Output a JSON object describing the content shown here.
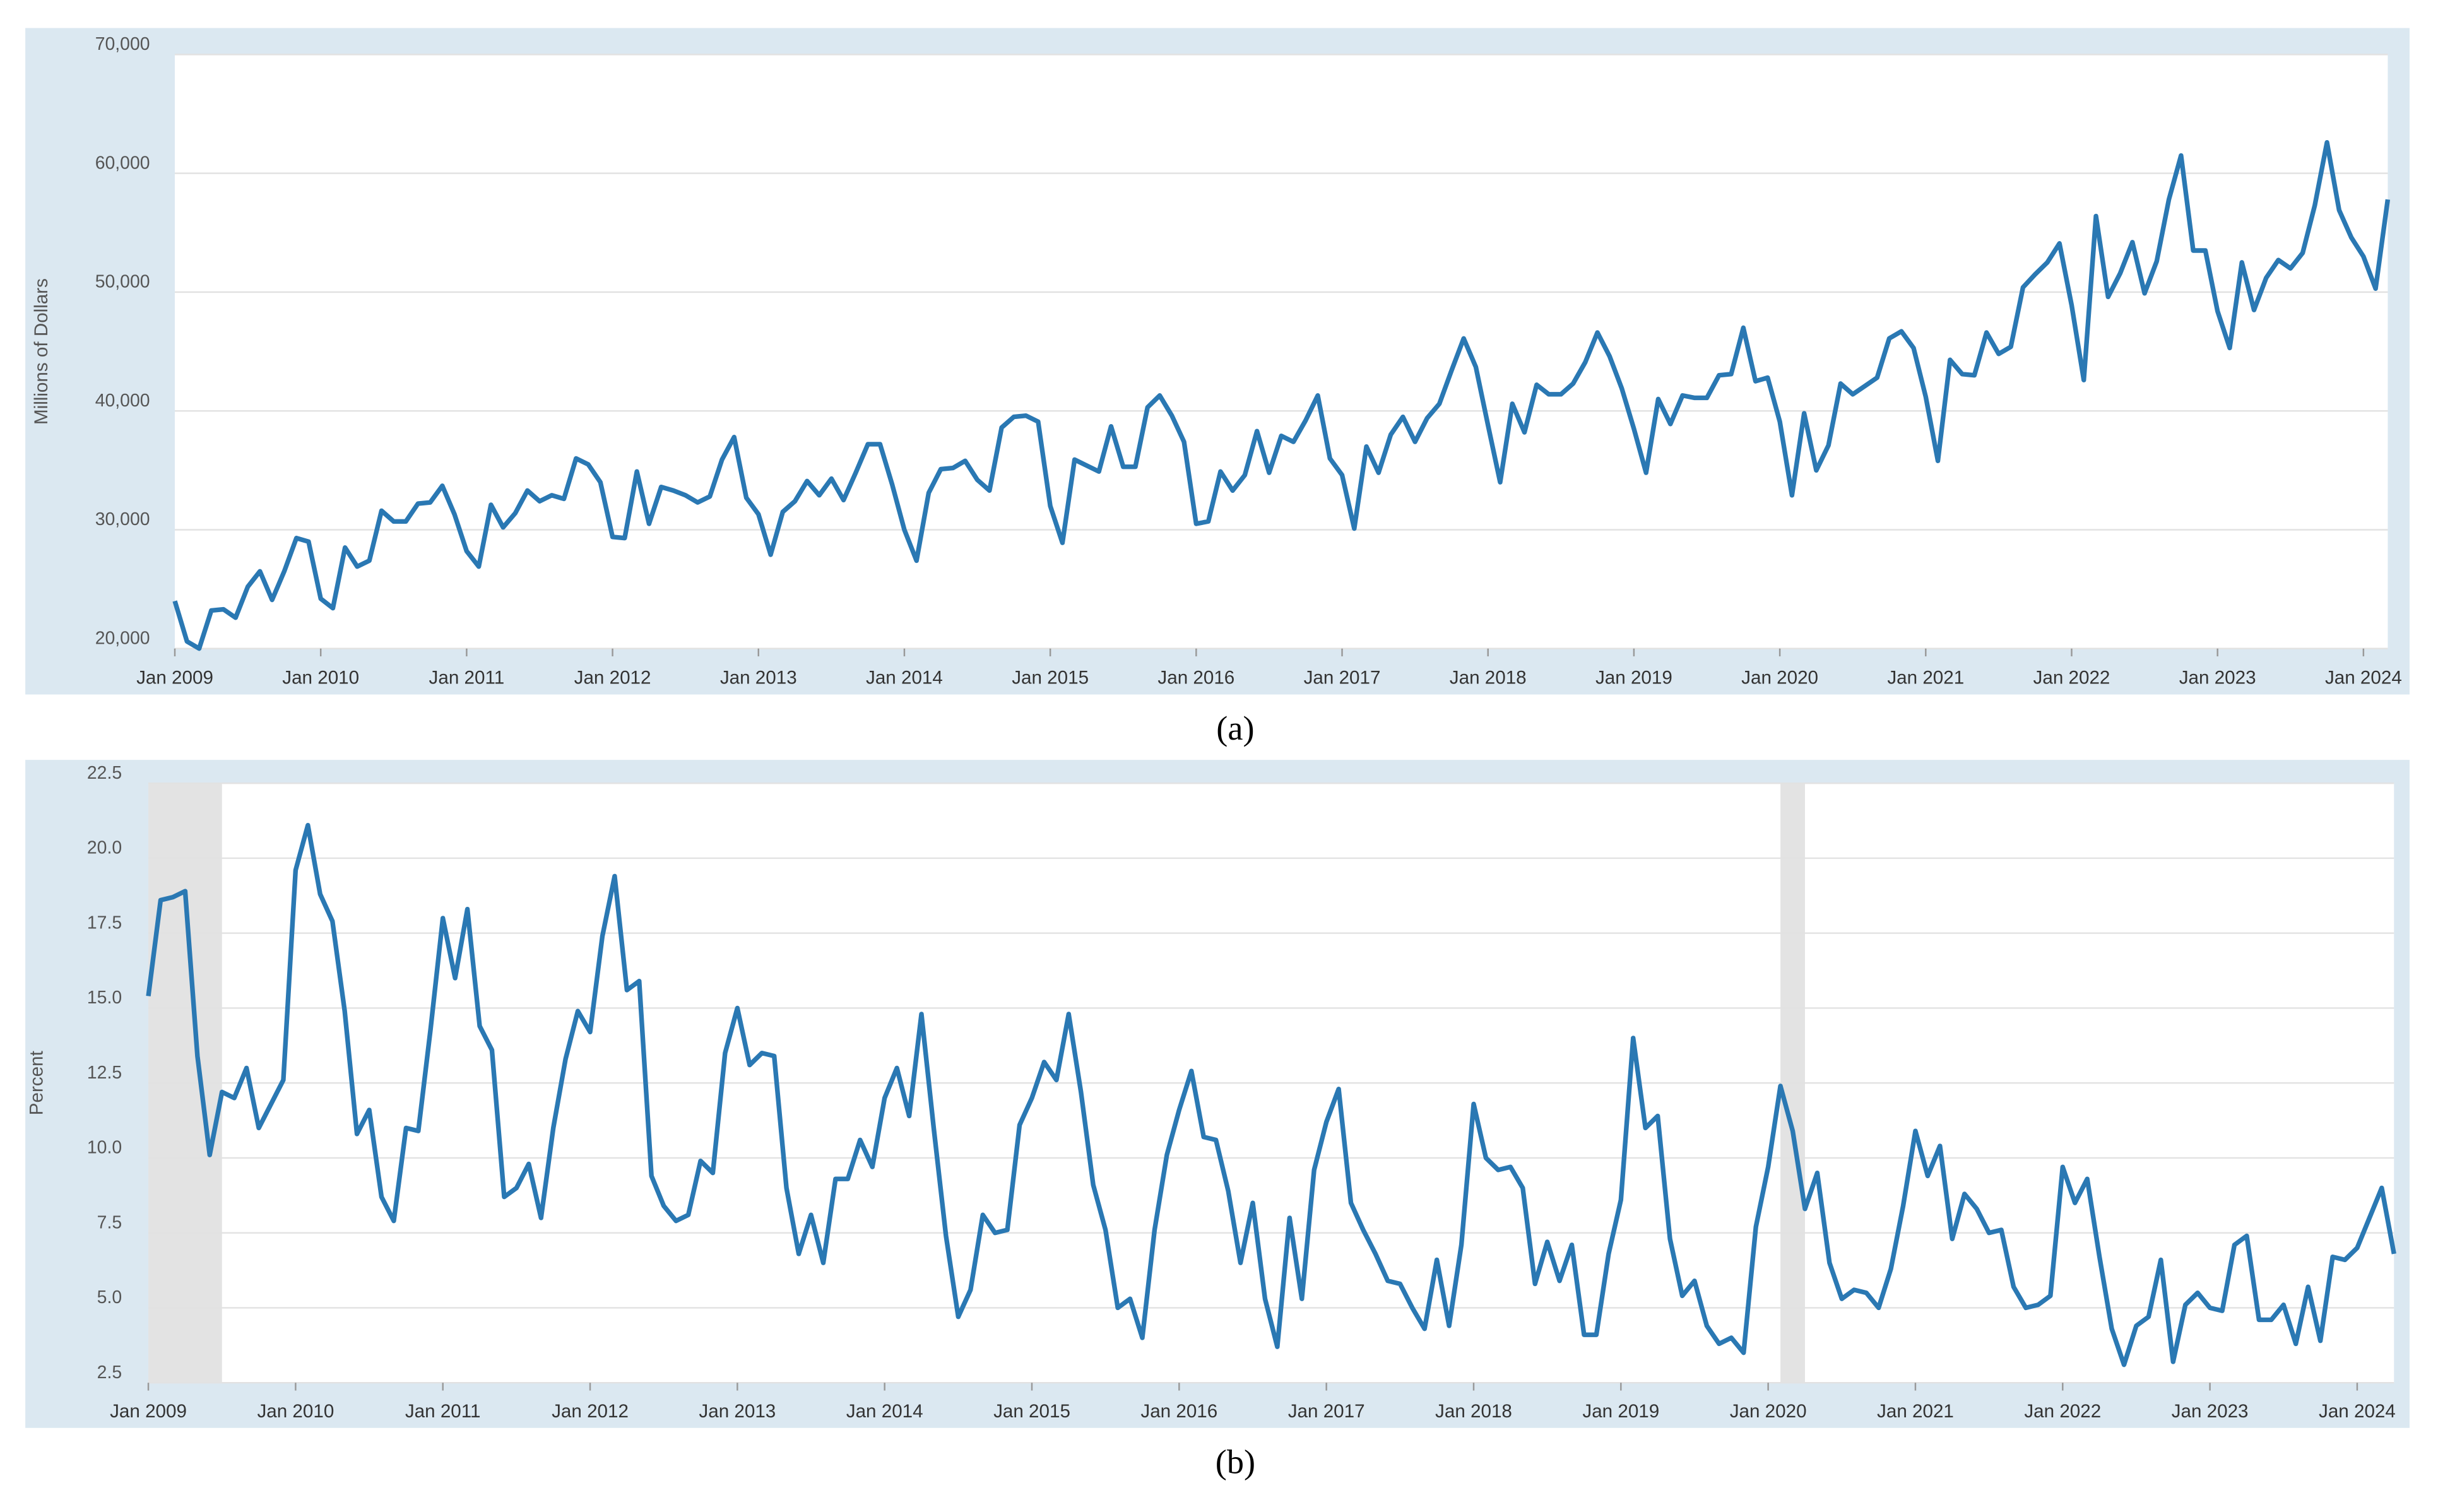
{
  "chart_data": [
    {
      "type": "line",
      "caption": "(a)",
      "ylabel": "Millions of Dollars",
      "color": "#2a78b3",
      "grid": true,
      "x": [
        "2009-01",
        "2009-02",
        "2009-03",
        "2009-04",
        "2009-05",
        "2009-06",
        "2009-07",
        "2009-08",
        "2009-09",
        "2009-10",
        "2009-11",
        "2009-12",
        "2010-01",
        "2010-02",
        "2010-03",
        "2010-04",
        "2010-05",
        "2010-06",
        "2010-07",
        "2010-08",
        "2010-09",
        "2010-10",
        "2010-11",
        "2010-12",
        "2011-01",
        "2011-02",
        "2011-03",
        "2011-04",
        "2011-05",
        "2011-06",
        "2011-07",
        "2011-08",
        "2011-09",
        "2011-10",
        "2011-11",
        "2011-12",
        "2012-01",
        "2012-02",
        "2012-03",
        "2012-04",
        "2012-05",
        "2012-06",
        "2012-07",
        "2012-08",
        "2012-09",
        "2012-10",
        "2012-11",
        "2012-12",
        "2013-01",
        "2013-02",
        "2013-03",
        "2013-04",
        "2013-05",
        "2013-06",
        "2013-07",
        "2013-08",
        "2013-09",
        "2013-10",
        "2013-11",
        "2013-12",
        "2014-01",
        "2014-02",
        "2014-03",
        "2014-04",
        "2014-05",
        "2014-06",
        "2014-07",
        "2014-08",
        "2014-09",
        "2014-10",
        "2014-11",
        "2014-12",
        "2015-01",
        "2015-02",
        "2015-03",
        "2015-04",
        "2015-05",
        "2015-06",
        "2015-07",
        "2015-08",
        "2015-09",
        "2015-10",
        "2015-11",
        "2015-12",
        "2016-01",
        "2016-02",
        "2016-03",
        "2016-04",
        "2016-05",
        "2016-06",
        "2016-07",
        "2016-08",
        "2016-09",
        "2016-10",
        "2016-11",
        "2016-12",
        "2017-01",
        "2017-02",
        "2017-03",
        "2017-04",
        "2017-05",
        "2017-06",
        "2017-07",
        "2017-08",
        "2017-09",
        "2017-10",
        "2017-11",
        "2017-12",
        "2018-01",
        "2018-02",
        "2018-03",
        "2018-04",
        "2018-05",
        "2018-06",
        "2018-07",
        "2018-08",
        "2018-09",
        "2018-10",
        "2018-11",
        "2018-12",
        "2019-01",
        "2019-02",
        "2019-03",
        "2019-04",
        "2019-05",
        "2019-06",
        "2019-07",
        "2019-08",
        "2019-09",
        "2019-10",
        "2019-11",
        "2019-12",
        "2020-01",
        "2020-02",
        "2020-03",
        "2020-04",
        "2020-05",
        "2020-06",
        "2020-07",
        "2020-08",
        "2020-09",
        "2020-10",
        "2020-11",
        "2020-12",
        "2021-01",
        "2021-02",
        "2021-03",
        "2021-04",
        "2021-05",
        "2021-06",
        "2021-07",
        "2021-08",
        "2021-09",
        "2021-10",
        "2021-11",
        "2021-12",
        "2022-01",
        "2022-02",
        "2022-03",
        "2022-04",
        "2022-05",
        "2022-06",
        "2022-07",
        "2022-08",
        "2022-09",
        "2022-10",
        "2022-11",
        "2022-12",
        "2023-01",
        "2023-02",
        "2023-03",
        "2023-04",
        "2023-05",
        "2023-06",
        "2023-07",
        "2023-08",
        "2023-09",
        "2023-10",
        "2023-11",
        "2023-12",
        "2024-01",
        "2024-02",
        "2024-03"
      ],
      "values": [
        24000,
        20600,
        20000,
        23200,
        23300,
        22600,
        25200,
        26500,
        24100,
        26500,
        29300,
        29000,
        24200,
        23400,
        28500,
        26900,
        27400,
        31600,
        30700,
        30700,
        32200,
        32300,
        33700,
        31300,
        28200,
        26900,
        32100,
        30200,
        31400,
        33300,
        32400,
        32900,
        32600,
        36000,
        35500,
        34000,
        29400,
        29300,
        34900,
        30500,
        33600,
        33300,
        32900,
        32300,
        32800,
        35900,
        37800,
        32700,
        31300,
        27900,
        31500,
        32400,
        34100,
        32900,
        34300,
        32500,
        34800,
        37200,
        37200,
        33800,
        30000,
        27400,
        33100,
        35100,
        35200,
        35800,
        34200,
        33300,
        38600,
        39500,
        39600,
        39100,
        32000,
        28900,
        35900,
        35400,
        34900,
        38700,
        35300,
        35300,
        40300,
        41300,
        39600,
        37400,
        30500,
        30700,
        34900,
        33300,
        34600,
        38300,
        34800,
        37900,
        37400,
        39200,
        41300,
        36000,
        34600,
        30100,
        37000,
        34800,
        38000,
        39500,
        37400,
        39400,
        40600,
        43400,
        46100,
        43700,
        38800,
        34000,
        40600,
        38200,
        42200,
        41400,
        41400,
        42300,
        44100,
        46600,
        44600,
        41900,
        38500,
        34800,
        41000,
        38900,
        41300,
        41100,
        41100,
        43000,
        43100,
        47000,
        42500,
        42800,
        39100,
        32900,
        39800,
        35000,
        37100,
        42300,
        41400,
        42100,
        42800,
        46100,
        46700,
        45300,
        41200,
        35800,
        44300,
        43100,
        43000,
        46600,
        44800,
        45400,
        50400,
        51500,
        52500,
        54100,
        48900,
        42600,
        56400,
        49600,
        51600,
        54200,
        49900,
        52600,
        57800,
        61500,
        53500,
        53500,
        48400,
        45300,
        52500,
        48500,
        51200,
        52700,
        52000,
        53300,
        57300,
        62600,
        56900,
        54600,
        53000,
        50300,
        57800
      ],
      "xlim": [
        "2009-01",
        "2024-03"
      ],
      "xticks": [
        {
          "value": "2009-01",
          "label": "Jan 2009"
        },
        {
          "value": "2010-01",
          "label": "Jan 2010"
        },
        {
          "value": "2011-01",
          "label": "Jan 2011"
        },
        {
          "value": "2012-01",
          "label": "Jan 2012"
        },
        {
          "value": "2013-01",
          "label": "Jan 2013"
        },
        {
          "value": "2014-01",
          "label": "Jan 2014"
        },
        {
          "value": "2015-01",
          "label": "Jan 2015"
        },
        {
          "value": "2016-01",
          "label": "Jan 2016"
        },
        {
          "value": "2017-01",
          "label": "Jan 2017"
        },
        {
          "value": "2018-01",
          "label": "Jan 2018"
        },
        {
          "value": "2019-01",
          "label": "Jan 2019"
        },
        {
          "value": "2020-01",
          "label": "Jan 2020"
        },
        {
          "value": "2021-01",
          "label": "Jan 2021"
        },
        {
          "value": "2022-01",
          "label": "Jan 2022"
        },
        {
          "value": "2023-01",
          "label": "Jan 2023"
        },
        {
          "value": "2024-01",
          "label": "Jan 2024"
        }
      ],
      "ylim": [
        20000,
        70000
      ],
      "yticks": [
        {
          "value": 20000,
          "label": "20,000"
        },
        {
          "value": 30000,
          "label": "30,000"
        },
        {
          "value": 40000,
          "label": "40,000"
        },
        {
          "value": 50000,
          "label": "50,000"
        },
        {
          "value": 60000,
          "label": "60,000"
        },
        {
          "value": 70000,
          "label": "70,000"
        }
      ]
    },
    {
      "type": "line",
      "caption": "(b)",
      "ylabel": "Percent",
      "color": "#2a78b3",
      "grid": true,
      "shaded": [
        {
          "start": "2009-01",
          "end": "2009-07"
        },
        {
          "start": "2020-02",
          "end": "2020-04"
        }
      ],
      "x": [
        "2009-01",
        "2009-02",
        "2009-03",
        "2009-04",
        "2009-05",
        "2009-06",
        "2009-07",
        "2009-08",
        "2009-09",
        "2009-10",
        "2009-11",
        "2009-12",
        "2010-01",
        "2010-02",
        "2010-03",
        "2010-04",
        "2010-05",
        "2010-06",
        "2010-07",
        "2010-08",
        "2010-09",
        "2010-10",
        "2010-11",
        "2010-12",
        "2011-01",
        "2011-02",
        "2011-03",
        "2011-04",
        "2011-05",
        "2011-06",
        "2011-07",
        "2011-08",
        "2011-09",
        "2011-10",
        "2011-11",
        "2011-12",
        "2012-01",
        "2012-02",
        "2012-03",
        "2012-04",
        "2012-05",
        "2012-06",
        "2012-07",
        "2012-08",
        "2012-09",
        "2012-10",
        "2012-11",
        "2012-12",
        "2013-01",
        "2013-02",
        "2013-03",
        "2013-04",
        "2013-05",
        "2013-06",
        "2013-07",
        "2013-08",
        "2013-09",
        "2013-10",
        "2013-11",
        "2013-12",
        "2014-01",
        "2014-02",
        "2014-03",
        "2014-04",
        "2014-05",
        "2014-06",
        "2014-07",
        "2014-08",
        "2014-09",
        "2014-10",
        "2014-11",
        "2014-12",
        "2015-01",
        "2015-02",
        "2015-03",
        "2015-04",
        "2015-05",
        "2015-06",
        "2015-07",
        "2015-08",
        "2015-09",
        "2015-10",
        "2015-11",
        "2015-12",
        "2016-01",
        "2016-02",
        "2016-03",
        "2016-04",
        "2016-05",
        "2016-06",
        "2016-07",
        "2016-08",
        "2016-09",
        "2016-10",
        "2016-11",
        "2016-12",
        "2017-01",
        "2017-02",
        "2017-03",
        "2017-04",
        "2017-05",
        "2017-06",
        "2017-07",
        "2017-08",
        "2017-09",
        "2017-10",
        "2017-11",
        "2017-12",
        "2018-01",
        "2018-02",
        "2018-03",
        "2018-04",
        "2018-05",
        "2018-06",
        "2018-07",
        "2018-08",
        "2018-09",
        "2018-10",
        "2018-11",
        "2018-12",
        "2019-01",
        "2019-02",
        "2019-03",
        "2019-04",
        "2019-05",
        "2019-06",
        "2019-07",
        "2019-08",
        "2019-09",
        "2019-10",
        "2019-11",
        "2019-12",
        "2020-01",
        "2020-02",
        "2020-03",
        "2020-04",
        "2020-05",
        "2020-06",
        "2020-07",
        "2020-08",
        "2020-09",
        "2020-10",
        "2020-11",
        "2020-12",
        "2021-01",
        "2021-02",
        "2021-03",
        "2021-04",
        "2021-05",
        "2021-06",
        "2021-07",
        "2021-08",
        "2021-09",
        "2021-10",
        "2021-11",
        "2021-12",
        "2022-01",
        "2022-02",
        "2022-03",
        "2022-04",
        "2022-05",
        "2022-06",
        "2022-07",
        "2022-08",
        "2022-09",
        "2022-10",
        "2022-11",
        "2022-12",
        "2023-01",
        "2023-02",
        "2023-03",
        "2023-04",
        "2023-05",
        "2023-06",
        "2023-07",
        "2023-08",
        "2023-09",
        "2023-10",
        "2023-11",
        "2023-12",
        "2024-01",
        "2024-02",
        "2024-03",
        "2024-04"
      ],
      "values": [
        15.4,
        18.6,
        18.7,
        18.9,
        13.4,
        10.1,
        12.2,
        12.0,
        13.0,
        11.0,
        11.8,
        12.6,
        19.6,
        21.1,
        18.8,
        17.9,
        14.9,
        10.8,
        11.6,
        8.7,
        7.9,
        11.0,
        10.9,
        14.3,
        18.0,
        16.0,
        18.3,
        14.4,
        13.6,
        8.7,
        9.0,
        9.8,
        8.0,
        11.0,
        13.3,
        14.9,
        14.2,
        17.4,
        19.4,
        15.6,
        15.9,
        9.4,
        8.4,
        7.9,
        8.1,
        9.9,
        9.5,
        13.5,
        15.0,
        13.1,
        13.5,
        13.4,
        9.0,
        6.8,
        8.1,
        6.5,
        9.3,
        9.3,
        10.6,
        9.7,
        12.0,
        13.0,
        11.4,
        14.8,
        11.0,
        7.4,
        4.7,
        5.6,
        8.1,
        7.5,
        7.6,
        11.1,
        12.0,
        13.2,
        12.6,
        14.8,
        12.2,
        9.1,
        7.6,
        5.0,
        5.3,
        4.0,
        7.6,
        10.1,
        11.6,
        12.9,
        10.7,
        10.6,
        8.9,
        6.5,
        8.5,
        5.3,
        3.7,
        8.0,
        5.3,
        9.6,
        11.2,
        12.3,
        8.5,
        7.6,
        6.8,
        5.9,
        5.8,
        5.0,
        4.3,
        6.6,
        4.4,
        7.1,
        11.8,
        10.0,
        9.6,
        9.7,
        9.0,
        5.8,
        7.2,
        5.9,
        7.1,
        4.1,
        4.1,
        6.8,
        8.6,
        14.0,
        11.0,
        11.4,
        7.3,
        5.4,
        5.9,
        4.4,
        3.8,
        4.0,
        3.5,
        7.7,
        9.7,
        12.4,
        10.9,
        8.3,
        9.5,
        6.5,
        5.3,
        5.6,
        5.5,
        5.0,
        6.3,
        8.4,
        10.9,
        9.4,
        10.4,
        7.3,
        8.8,
        8.3,
        7.5,
        7.6,
        5.7,
        5.0,
        5.1,
        5.4,
        9.7,
        8.5,
        9.3,
        6.7,
        4.3,
        3.1,
        4.4,
        4.7,
        6.6,
        3.2,
        5.1,
        5.5,
        5.0,
        4.9,
        7.1,
        7.4,
        4.6,
        4.6,
        5.1,
        3.8,
        5.7,
        3.9,
        6.7,
        6.6,
        7.0,
        8.0,
        9.0,
        6.8
      ],
      "xlim": [
        "2009-01",
        "2024-04"
      ],
      "xticks": [
        {
          "value": "2009-01",
          "label": "Jan 2009"
        },
        {
          "value": "2010-01",
          "label": "Jan 2010"
        },
        {
          "value": "2011-01",
          "label": "Jan 2011"
        },
        {
          "value": "2012-01",
          "label": "Jan 2012"
        },
        {
          "value": "2013-01",
          "label": "Jan 2013"
        },
        {
          "value": "2014-01",
          "label": "Jan 2014"
        },
        {
          "value": "2015-01",
          "label": "Jan 2015"
        },
        {
          "value": "2016-01",
          "label": "Jan 2016"
        },
        {
          "value": "2017-01",
          "label": "Jan 2017"
        },
        {
          "value": "2018-01",
          "label": "Jan 2018"
        },
        {
          "value": "2019-01",
          "label": "Jan 2019"
        },
        {
          "value": "2020-01",
          "label": "Jan 2020"
        },
        {
          "value": "2021-01",
          "label": "Jan 2021"
        },
        {
          "value": "2022-01",
          "label": "Jan 2022"
        },
        {
          "value": "2023-01",
          "label": "Jan 2023"
        },
        {
          "value": "2024-01",
          "label": "Jan 2024"
        }
      ],
      "ylim": [
        2.5,
        22.5
      ],
      "yticks": [
        2.5,
        {
          "value": 5,
          "label": "5.0"
        },
        7.5,
        {
          "value": 10,
          "label": "10.0"
        },
        12.5,
        {
          "value": 15,
          "label": "15.0"
        },
        17.5,
        {
          "value": 20,
          "label": "20.0"
        },
        22.5
      ]
    }
  ]
}
